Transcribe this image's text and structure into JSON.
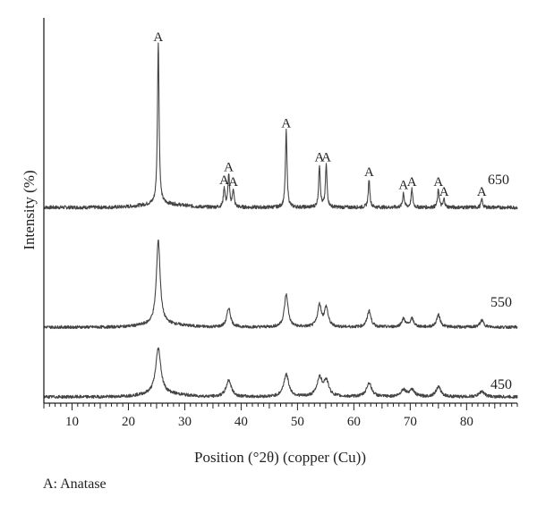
{
  "chart_data": {
    "type": "line",
    "title": "",
    "xlabel": "Position (°2θ) (copper (Cu))",
    "ylabel": "Intensity (%)",
    "xlim": [
      5,
      89
    ],
    "x_ticks": [
      10,
      20,
      30,
      40,
      50,
      60,
      70,
      80
    ],
    "y_ticks_shown": false,
    "grid": false,
    "legend_note": "A: Anatase",
    "peak_marker": "A",
    "colors": {
      "line": "#444444",
      "axis": "#222222",
      "text": "#222222"
    },
    "series": [
      {
        "name": "650",
        "peaks": [
          {
            "x": 25.3,
            "height": 100
          },
          {
            "x": 37.0,
            "height": 12
          },
          {
            "x": 37.8,
            "height": 20
          },
          {
            "x": 38.6,
            "height": 11
          },
          {
            "x": 48.0,
            "height": 47
          },
          {
            "x": 53.9,
            "height": 26
          },
          {
            "x": 55.1,
            "height": 26
          },
          {
            "x": 62.7,
            "height": 17
          },
          {
            "x": 68.8,
            "height": 9
          },
          {
            "x": 70.3,
            "height": 11
          },
          {
            "x": 75.0,
            "height": 11
          },
          {
            "x": 76.0,
            "height": 5
          },
          {
            "x": 82.7,
            "height": 5
          }
        ],
        "peak_labels_x": [
          25.3,
          37.0,
          37.8,
          38.6,
          48.0,
          53.9,
          55.1,
          62.7,
          68.8,
          70.3,
          75.0,
          76.0,
          82.7
        ]
      },
      {
        "name": "550",
        "peaks": [
          {
            "x": 25.3,
            "height": 62
          },
          {
            "x": 37.8,
            "height": 14
          },
          {
            "x": 48.0,
            "height": 24
          },
          {
            "x": 53.9,
            "height": 16
          },
          {
            "x": 55.1,
            "height": 14
          },
          {
            "x": 62.7,
            "height": 12
          },
          {
            "x": 68.8,
            "height": 6
          },
          {
            "x": 70.3,
            "height": 6
          },
          {
            "x": 75.0,
            "height": 9
          },
          {
            "x": 82.7,
            "height": 5
          }
        ]
      },
      {
        "name": "450",
        "peaks": [
          {
            "x": 25.3,
            "height": 33
          },
          {
            "x": 37.8,
            "height": 12
          },
          {
            "x": 48.0,
            "height": 16
          },
          {
            "x": 53.9,
            "height": 13
          },
          {
            "x": 55.1,
            "height": 11
          },
          {
            "x": 62.7,
            "height": 10
          },
          {
            "x": 68.8,
            "height": 5
          },
          {
            "x": 70.3,
            "height": 5
          },
          {
            "x": 75.0,
            "height": 7
          },
          {
            "x": 82.7,
            "height": 4
          }
        ]
      }
    ]
  }
}
